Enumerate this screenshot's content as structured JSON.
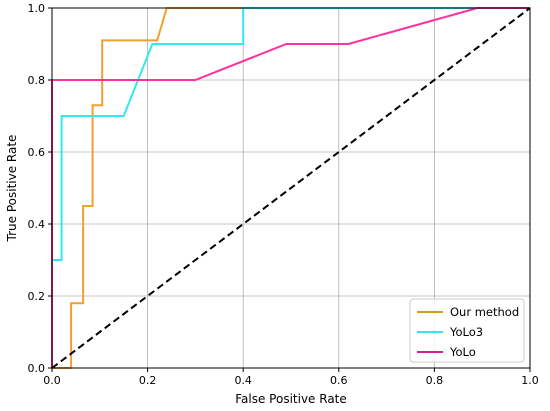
{
  "chart_data": {
    "type": "line",
    "xlabel": "False Positive Rate",
    "ylabel": "True Positive Rate",
    "xlim": [
      0.0,
      1.0
    ],
    "ylim": [
      0.0,
      1.0
    ],
    "xticks": [
      "0.0",
      "0.2",
      "0.4",
      "0.6",
      "0.8",
      "1.0"
    ],
    "yticks": [
      "0.0",
      "0.2",
      "0.4",
      "0.6",
      "0.8",
      "1.0"
    ],
    "grid": true,
    "legend_position": "lower-right",
    "series": [
      {
        "name": "Our method",
        "color": "#f0a030",
        "legend_color": "#c8a020",
        "x": [
          0.0,
          0.04,
          0.04,
          0.065,
          0.065,
          0.085,
          0.085,
          0.105,
          0.105,
          0.22,
          0.24,
          0.4
        ],
        "y": [
          0.0,
          0.0,
          0.18,
          0.18,
          0.45,
          0.45,
          0.73,
          0.73,
          0.91,
          0.91,
          1.0,
          1.0
        ]
      },
      {
        "name": "YoLo3",
        "color": "#30e8f0",
        "legend_color": "#30e8f0",
        "x": [
          0.0,
          0.0,
          0.02,
          0.02,
          0.15,
          0.21,
          0.4,
          0.4,
          0.88,
          1.0
        ],
        "y": [
          0.0,
          0.3,
          0.3,
          0.7,
          0.7,
          0.9,
          0.9,
          1.0,
          1.0,
          1.0
        ]
      },
      {
        "name": "YoLo",
        "color": "#ff30a0",
        "legend_color": "#d020a0",
        "x": [
          0.0,
          0.0,
          0.3,
          0.49,
          0.62,
          0.89,
          1.0
        ],
        "y": [
          0.0,
          0.8,
          0.8,
          0.9,
          0.9,
          1.0,
          1.0
        ]
      }
    ],
    "reference_line": {
      "x": [
        0.0,
        1.0
      ],
      "y": [
        0.0,
        1.0
      ],
      "color": "#000000",
      "style": "dashed"
    }
  }
}
